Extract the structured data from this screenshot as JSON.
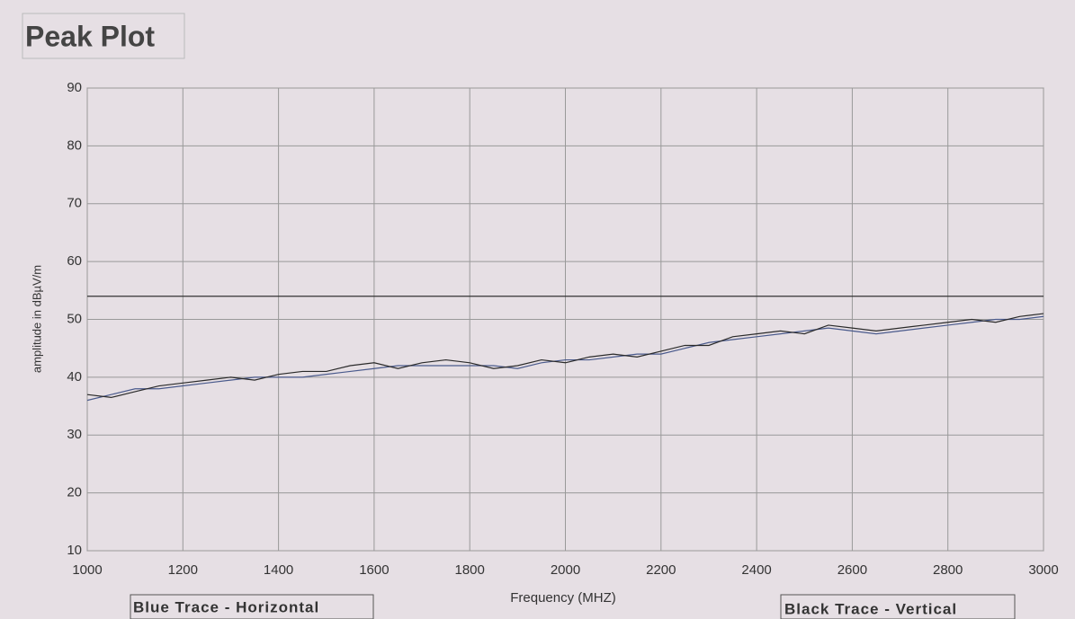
{
  "chart_data": {
    "type": "line",
    "title": "Peak Plot",
    "x_label": "Frequency (MHZ)",
    "y_label": "amplitude in dBµV/m",
    "x": [
      1000,
      1050,
      1100,
      1150,
      1200,
      1250,
      1300,
      1350,
      1400,
      1450,
      1500,
      1550,
      1600,
      1650,
      1700,
      1750,
      1800,
      1850,
      1900,
      1950,
      2000,
      2050,
      2100,
      2150,
      2200,
      2250,
      2300,
      2350,
      2400,
      2450,
      2500,
      2550,
      2600,
      2650,
      2700,
      2750,
      2800,
      2850,
      2900,
      2950,
      3000
    ],
    "series": [
      {
        "name": "Blue Trace - Horizontal",
        "color": "#4a5a8c",
        "values": [
          36,
          37,
          38,
          38,
          38.5,
          39,
          39.5,
          40,
          40,
          40,
          40.5,
          41,
          41.5,
          42,
          42,
          42,
          42,
          42,
          41.5,
          42.5,
          43,
          43,
          43.5,
          44,
          44,
          45,
          46,
          46.5,
          47,
          47.5,
          48,
          48.5,
          48,
          47.5,
          48,
          48.5,
          49,
          49.5,
          50,
          50,
          50.5
        ]
      },
      {
        "name": "Black Trace - Vertical",
        "color": "#2a2a2a",
        "values": [
          37,
          36.5,
          37.5,
          38.5,
          39,
          39.5,
          40,
          39.5,
          40.5,
          41,
          41,
          42,
          42.5,
          41.5,
          42.5,
          43,
          42.5,
          41.5,
          42,
          43,
          42.5,
          43.5,
          44,
          43.5,
          44.5,
          45.5,
          45.5,
          47,
          47.5,
          48,
          47.5,
          49,
          48.5,
          48,
          48.5,
          49,
          49.5,
          50,
          49.5,
          50.5,
          51
        ]
      }
    ],
    "reference_line": 54,
    "xlim": [
      1000,
      3000
    ],
    "xticks": [
      1000,
      1200,
      1400,
      1600,
      1800,
      2000,
      2200,
      2400,
      2600,
      2800,
      3000
    ],
    "ylim": [
      10,
      90
    ],
    "yticks": [
      10,
      20,
      30,
      40,
      50,
      60,
      70,
      80,
      90
    ],
    "grid": true
  }
}
